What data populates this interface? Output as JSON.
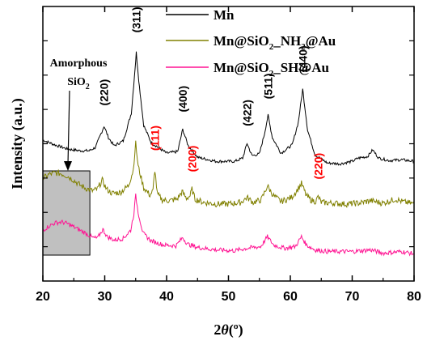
{
  "chart_data": {
    "type": "line",
    "xlabel": "2θ(º)",
    "ylabel": "Intensity (a.u.)",
    "xlim": [
      20,
      80
    ],
    "xticks": [
      20,
      30,
      40,
      50,
      60,
      70,
      80
    ],
    "y_axis_tick_labels": false,
    "legend_position": "top-right",
    "series": [
      {
        "name": "Mn",
        "color": "#000000",
        "x": [
          20,
          22,
          24,
          26,
          27.5,
          28.5,
          29.3,
          29.9,
          30.6,
          31.5,
          33,
          34.3,
          34.8,
          35.1,
          35.5,
          36.3,
          37.5,
          40,
          41.8,
          42.6,
          43.5,
          45,
          48,
          51,
          52.3,
          53,
          53.8,
          55,
          55.8,
          56.4,
          57.1,
          58.5,
          60.3,
          61.3,
          62,
          62.8,
          64,
          66,
          68,
          70,
          71,
          72.5,
          73.3,
          74.3,
          76,
          78,
          80
        ],
        "y": [
          8.2,
          7.6,
          7.1,
          6.9,
          6.9,
          7.3,
          8.8,
          9.9,
          8.5,
          7.5,
          8.1,
          11.5,
          16.0,
          18.9,
          15.5,
          10.0,
          7.9,
          6.6,
          6.8,
          9.5,
          7.5,
          6.1,
          5.6,
          5.6,
          6.0,
          7.8,
          6.3,
          6.5,
          8.9,
          11.2,
          8.5,
          6.6,
          7.6,
          10.4,
          14.4,
          9.4,
          6.4,
          5.4,
          5.3,
          5.6,
          6.0,
          6.2,
          7.0,
          6.0,
          5.7,
          5.8,
          5.6
        ]
      },
      {
        "name": "Mn@SiO2_NH2@Au",
        "color": "#808000",
        "x": [
          20,
          21,
          22,
          23,
          24,
          25,
          26,
          27,
          28,
          28.8,
          29.6,
          30.3,
          31.2,
          32.5,
          33.8,
          34.6,
          35.0,
          35.4,
          36.3,
          37.3,
          37.8,
          38.1,
          38.5,
          39.3,
          40.5,
          41.7,
          42.5,
          43.2,
          43.8,
          44.1,
          44.6,
          46,
          48,
          50,
          52,
          53,
          54,
          55.3,
          56.3,
          57.3,
          58.5,
          60.2,
          61.2,
          61.8,
          62.6,
          63.3,
          64.1,
          64.5,
          65,
          67,
          69,
          71,
          73,
          75,
          77,
          78,
          80
        ],
        "y": [
          3.5,
          4.0,
          4.2,
          4.1,
          3.8,
          3.3,
          2.7,
          2.3,
          2.0,
          2.2,
          3.3,
          2.2,
          1.7,
          1.8,
          2.6,
          4.5,
          7.8,
          5.0,
          2.4,
          1.5,
          2.0,
          4.6,
          1.6,
          0.9,
          0.8,
          1.0,
          1.9,
          1.1,
          1.4,
          2.2,
          1.0,
          0.6,
          0.4,
          0.4,
          0.6,
          1.2,
          0.6,
          0.9,
          2.6,
          1.4,
          0.7,
          1.2,
          2.2,
          2.9,
          1.4,
          0.9,
          0.7,
          1.3,
          0.6,
          0.5,
          0.4,
          0.5,
          0.8,
          0.5,
          1.0,
          0.7,
          0.4
        ]
      },
      {
        "name": "Mn@SiO2_SH@Au",
        "color": "#ff1493",
        "x": [
          20,
          21,
          22,
          23,
          24,
          25,
          26,
          27,
          28,
          28.8,
          29.7,
          30.4,
          31.5,
          33,
          34.2,
          34.7,
          35.0,
          35.4,
          36.2,
          37.5,
          39.5,
          41.5,
          42.6,
          43.4,
          45,
          48,
          51,
          53,
          55.2,
          56.3,
          57.3,
          59,
          60.8,
          61.8,
          62.6,
          64,
          66,
          70,
          73,
          75,
          78,
          80
        ],
        "y": [
          -2.8,
          -2.3,
          -1.9,
          -1.8,
          -2.0,
          -2.4,
          -2.8,
          -3.2,
          -3.7,
          -3.8,
          -2.7,
          -3.6,
          -4.0,
          -3.8,
          -2.8,
          -0.8,
          1.4,
          -0.6,
          -3.2,
          -4.1,
          -4.6,
          -4.7,
          -3.7,
          -4.5,
          -4.9,
          -5.2,
          -5.3,
          -5.0,
          -4.8,
          -3.6,
          -4.6,
          -5.0,
          -4.8,
          -3.6,
          -4.6,
          -5.2,
          -5.4,
          -5.4,
          -5.2,
          -5.6,
          -5.4,
          -5.7
        ]
      }
    ],
    "peak_labels": [
      {
        "text": "(220)",
        "x": 29.9,
        "y": 12.4,
        "color": "#000000"
      },
      {
        "text": "(311)",
        "x": 35.1,
        "y": 21.3,
        "color": "#000000"
      },
      {
        "text": "(400)",
        "x": 42.6,
        "y": 11.6,
        "color": "#000000"
      },
      {
        "text": "(422)",
        "x": 53.0,
        "y": 9.9,
        "color": "#000000"
      },
      {
        "text": "(511)",
        "x": 56.4,
        "y": 13.2,
        "color": "#000000"
      },
      {
        "text": "(440)",
        "x": 62.0,
        "y": 16.5,
        "color": "#000000"
      },
      {
        "text": "(111)",
        "x": 38.1,
        "y": 6.9,
        "color": "#ff0000"
      },
      {
        "text": "(200)",
        "x": 44.1,
        "y": 4.3,
        "color": "#ff0000"
      },
      {
        "text": "(220)",
        "x": 64.5,
        "y": 3.4,
        "color": "#ff0000"
      }
    ],
    "annotation": {
      "line1": "Amorphous",
      "line2_base": "SiO",
      "line2_sub": "2"
    },
    "amorphous_region": {
      "x_range": [
        20,
        27.6
      ]
    }
  }
}
